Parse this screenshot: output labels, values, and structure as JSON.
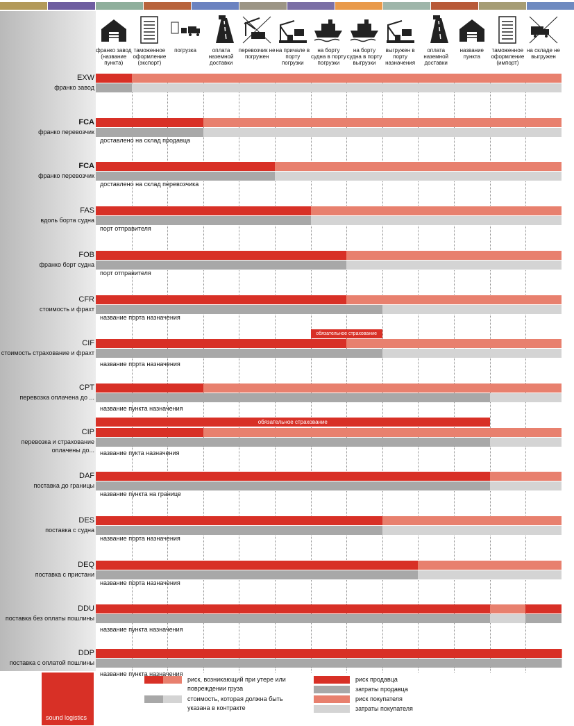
{
  "colors": {
    "seller_risk": "#d83026",
    "buyer_risk": "#e8806e",
    "seller_cost": "#a8a8a8",
    "buyer_cost": "#d4d4d4",
    "top_strip": [
      "#b39a5a",
      "#6e5ea0",
      "#8faf9c",
      "#b8643c",
      "#6b82c0",
      "#9c9585",
      "#7b6fa5",
      "#e99a4a",
      "#9fb6aa",
      "#b85a38",
      "#a69d75",
      "#6e8ac0"
    ]
  },
  "columns": [
    {
      "label": "франко завод (название пункта)",
      "icon": "warehouse-icon"
    },
    {
      "label": "таможенное оформление (экспорт)",
      "icon": "document-icon"
    },
    {
      "label": "погрузка",
      "icon": "truck-loading-icon"
    },
    {
      "label": "оплата наземной доставки",
      "icon": "road-icon"
    },
    {
      "label": "перевозчик не погружен",
      "icon": "crane-truck-crossed-icon"
    },
    {
      "label": "на причале в порту погрузки",
      "icon": "crane-dock-icon"
    },
    {
      "label": "на борту судна в порту погрузки",
      "icon": "ship-icon"
    },
    {
      "label": "на борту судна в порту выгрузки",
      "icon": "ship-icon"
    },
    {
      "label": "выгружен в порту назначения",
      "icon": "crane-dock-icon"
    },
    {
      "label": "оплата наземной доставки",
      "icon": "road-icon"
    },
    {
      "label": "название пункта",
      "icon": "warehouse-icon"
    },
    {
      "label": "таможенное оформление (импорт)",
      "icon": "document-icon"
    },
    {
      "label": "на складе не выгружен",
      "icon": "truck-crossed-icon"
    }
  ],
  "rows": [
    {
      "code": "EXW",
      "desc": "франко завод",
      "note": "",
      "risk_seller_cols": 1,
      "cost_seller_cols": 1,
      "bold": false
    },
    {
      "code": "FCA",
      "desc": "франко перевозчик",
      "note": "доставлено на склад продавца",
      "risk_seller_cols": 3,
      "cost_seller_cols": 3,
      "bold": true
    },
    {
      "code": "FCA",
      "desc": "франко перевозчик",
      "note": "доставлено на склад перевозчика",
      "risk_seller_cols": 5,
      "cost_seller_cols": 5,
      "bold": true
    },
    {
      "code": "FAS",
      "desc": "вдоль борта судна",
      "note": "порт отправителя",
      "risk_seller_cols": 6,
      "cost_seller_cols": 6,
      "bold": false
    },
    {
      "code": "FOB",
      "desc": "франко борт судна",
      "note": "порт отправителя",
      "risk_seller_cols": 7,
      "cost_seller_cols": 7,
      "bold": false
    },
    {
      "code": "CFR",
      "desc": "стоимость и фрахт",
      "note": "название порта назначения",
      "risk_seller_cols": 7,
      "cost_seller_cols": 8,
      "bold": false
    },
    {
      "code": "CIF",
      "desc": "стоимость страхование и фрахт",
      "note": "название порта назначения",
      "risk_seller_cols": 7,
      "cost_seller_cols": 8,
      "bold": false,
      "insurance": "обязательное страхование",
      "insurance_cols": [
        6,
        8
      ]
    },
    {
      "code": "CPT",
      "desc": "перевозка оплачена до ...",
      "note": "название пункта назначения",
      "risk_seller_cols": 3,
      "cost_seller_cols": 11,
      "bold": false
    },
    {
      "code": "CIP",
      "desc": "перевозка и страхование оплачены до...",
      "note": "название пукта назначения",
      "risk_seller_cols": 3,
      "cost_seller_cols": 11,
      "bold": false,
      "insurance": "обязательное страхование",
      "insurance_cols": [
        0,
        11
      ]
    },
    {
      "code": "DAF",
      "desc": "поставка до   границы",
      "note": "название пункта на границе",
      "risk_seller_cols": 11,
      "cost_seller_cols": 11,
      "bold": false
    },
    {
      "code": "DES",
      "desc": "поставка с судна",
      "note": "название порта назначения",
      "risk_seller_cols": 8,
      "cost_seller_cols": 8,
      "bold": false
    },
    {
      "code": "DEQ",
      "desc": "поставка с пристани",
      "note": "название порта назначения",
      "risk_seller_cols": 9,
      "cost_seller_cols": 9,
      "bold": false
    },
    {
      "code": "DDU",
      "desc": "поставка без оплаты пошлины",
      "note": "название пункта назначения",
      "risk_seller_cols": 11,
      "cost_seller_cols": 11,
      "bold": false,
      "ddu_gap": true
    },
    {
      "code": "DDP",
      "desc": "поставка с оплатой пошлины",
      "note": "название пункта назначения",
      "risk_seller_cols": 13,
      "cost_seller_cols": 13,
      "bold": false
    }
  ],
  "legend": {
    "risk_text": "риск, возникающий при утере или повреждении груза",
    "cost_text": "стоимость, которая должна быть указана в контракте",
    "seller_risk": "риск продавца",
    "seller_cost": "затраты продавца",
    "buyer_risk": "риск покупателя",
    "buyer_cost": "затраты покупателя"
  },
  "brand": "sound logistics"
}
